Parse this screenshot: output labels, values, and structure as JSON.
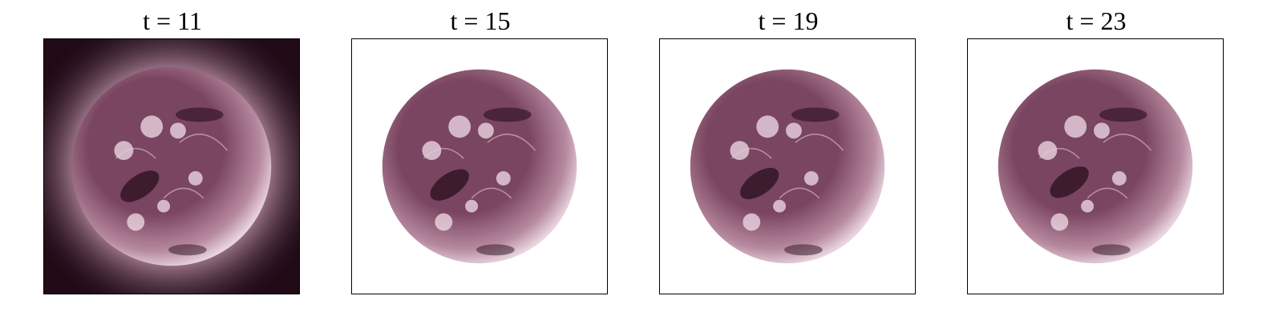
{
  "panels": [
    {
      "title": "t = 11",
      "masked": false
    },
    {
      "title": "t = 15",
      "masked": true
    },
    {
      "title": "t = 19",
      "masked": true
    },
    {
      "title": "t = 23",
      "masked": true
    }
  ],
  "colors": {
    "sun_dark": "#2a0f1e",
    "sun_mid": "#7a4560",
    "sun_light": "#e9d5df",
    "background_dark": "#1f0a16",
    "frame_border": "#000000"
  }
}
